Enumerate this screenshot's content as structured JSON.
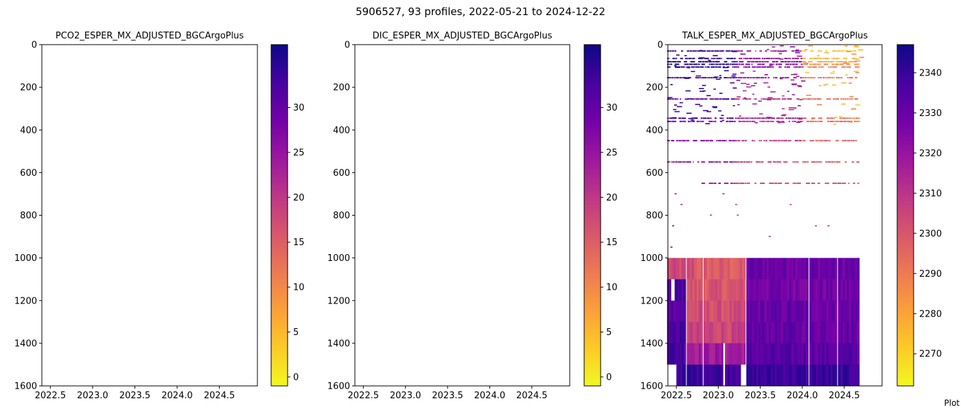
{
  "figure": {
    "suptitle": "5906527, 93 profiles, 2022-05-21 to 2024-12-22",
    "footer": "Plot"
  },
  "colors": {
    "cmap": [
      "#f0f921",
      "#fdca26",
      "#fb9f3a",
      "#ed7953",
      "#d8576b",
      "#bd3786",
      "#9c179e",
      "#7201a8",
      "#46039f",
      "#0d0887"
    ]
  },
  "chart_data": [
    {
      "type": "heatmap",
      "title": "PCO2_ESPER_MX_ADJUSTED_BGCArgoPlus",
      "xlim": [
        2022.4,
        2024.95
      ],
      "ylim": [
        1600,
        0
      ],
      "y_inverted": true,
      "xticks": [
        "2022.5",
        "2023.0",
        "2023.5",
        "2024.0",
        "2024.5"
      ],
      "yticks": [
        "0",
        "200",
        "400",
        "600",
        "800",
        "1000",
        "1200",
        "1400",
        "1600"
      ],
      "colorbar": {
        "range": [
          -1,
          37
        ],
        "ticks": [
          "0",
          "5",
          "10",
          "15",
          "20",
          "25",
          "30"
        ]
      },
      "cells": []
    },
    {
      "type": "heatmap",
      "title": "DIC_ESPER_MX_ADJUSTED_BGCArgoPlus",
      "xlim": [
        2022.4,
        2024.95
      ],
      "ylim": [
        1600,
        0
      ],
      "y_inverted": true,
      "xticks": [
        "2022.5",
        "2023.0",
        "2023.5",
        "2024.0",
        "2024.5"
      ],
      "yticks": [
        "0",
        "200",
        "400",
        "600",
        "800",
        "1000",
        "1200",
        "1400",
        "1600"
      ],
      "colorbar": {
        "range": [
          -1,
          37
        ],
        "ticks": [
          "0",
          "5",
          "10",
          "15",
          "20",
          "25",
          "30"
        ]
      },
      "cells": []
    },
    {
      "type": "heatmap",
      "title": "TALK_ESPER_MX_ADJUSTED_BGCArgoPlus",
      "xlim": [
        2022.4,
        2024.95
      ],
      "ylim": [
        1600,
        0
      ],
      "y_inverted": true,
      "xticks": [
        "2022.5",
        "2023.0",
        "2023.5",
        "2024.0",
        "2024.5"
      ],
      "yticks": [
        "0",
        "200",
        "400",
        "600",
        "800",
        "1000",
        "1200",
        "1400",
        "1600"
      ],
      "colorbar": {
        "range": [
          2262,
          2347
        ],
        "ticks": [
          "2270",
          "2280",
          "2290",
          "2300",
          "2310",
          "2320",
          "2330",
          "2340"
        ]
      },
      "profile_time_range": [
        2022.39,
        2024.68
      ],
      "deep_bands": [
        {
          "depth": [
            1000,
            1100
          ],
          "segments": [
            [
              2022.39,
              2022.72,
              2303
            ],
            [
              2022.72,
              2023.33,
              2298
            ],
            [
              2023.33,
              2024.68,
              2330
            ]
          ]
        },
        {
          "depth": [
            1100,
            1200
          ],
          "segments": [
            [
              2022.39,
              2022.62,
              2336
            ],
            [
              2022.62,
              2023.33,
              2300
            ],
            [
              2023.33,
              2024.68,
              2328
            ]
          ]
        },
        {
          "depth": [
            1200,
            1300
          ],
          "segments": [
            [
              2022.39,
              2022.62,
              2334
            ],
            [
              2022.62,
              2023.33,
              2302
            ],
            [
              2023.33,
              2024.68,
              2330
            ]
          ]
        },
        {
          "depth": [
            1300,
            1400
          ],
          "segments": [
            [
              2022.39,
              2022.62,
              2336
            ],
            [
              2022.62,
              2023.33,
              2305
            ],
            [
              2023.33,
              2024.68,
              2331
            ]
          ]
        },
        {
          "depth": [
            1400,
            1500
          ],
          "segments": [
            [
              2022.39,
              2022.62,
              2338
            ],
            [
              2022.62,
              2023.33,
              2318
            ],
            [
              2023.33,
              2024.68,
              2333
            ]
          ]
        },
        {
          "depth": [
            1500,
            1600
          ],
          "segments": [
            [
              2022.5,
              2023.27,
              2340
            ],
            [
              2023.33,
              2024.68,
              2339
            ]
          ]
        }
      ],
      "deep_gaps": [
        {
          "x": [
            2022.39,
            2022.5
          ],
          "depth": [
            1500,
            1600
          ]
        },
        {
          "x": [
            2022.44,
            2022.48
          ],
          "depth": [
            1100,
            1200
          ]
        },
        {
          "x": [
            2023.06,
            2023.08
          ],
          "depth": [
            1400,
            1600
          ]
        },
        {
          "x": [
            2023.27,
            2023.33
          ],
          "depth": [
            1500,
            1600
          ]
        }
      ],
      "shallow_rows": [
        {
          "depth": 30,
          "segments": [
            [
              2022.39,
              2023.2,
              2338
            ],
            [
              2023.2,
              2024.0,
              2318
            ],
            [
              2024.0,
              2024.68,
              2272
            ]
          ]
        },
        {
          "depth": 65,
          "segments": [
            [
              2022.39,
              2023.2,
              2342
            ],
            [
              2023.2,
              2024.0,
              2322
            ],
            [
              2024.0,
              2024.68,
              2278
            ]
          ]
        },
        {
          "depth": 80,
          "segments": [
            [
              2022.39,
              2023.2,
              2344
            ],
            [
              2023.2,
              2024.0,
              2325
            ],
            [
              2024.0,
              2024.68,
              2282
            ]
          ]
        },
        {
          "depth": 92,
          "segments": [
            [
              2022.39,
              2023.2,
              2344
            ],
            [
              2023.2,
              2024.0,
              2326
            ],
            [
              2024.0,
              2024.68,
              2286
            ]
          ]
        },
        {
          "depth": 105,
          "segments": [
            [
              2022.39,
              2023.2,
              2345
            ],
            [
              2023.2,
              2024.0,
              2325
            ],
            [
              2024.0,
              2024.68,
              2290
            ]
          ]
        },
        {
          "depth": 155,
          "segments": [
            [
              2022.39,
              2023.2,
              2335
            ],
            [
              2023.2,
              2024.0,
              2318
            ],
            [
              2024.0,
              2024.68,
              2292
            ]
          ]
        },
        {
          "depth": 255,
          "segments": [
            [
              2022.39,
              2023.2,
              2330
            ],
            [
              2023.2,
              2024.0,
              2312
            ],
            [
              2024.0,
              2024.68,
              2292
            ]
          ]
        },
        {
          "depth": 345,
          "segments": [
            [
              2022.39,
              2023.2,
              2335
            ],
            [
              2023.2,
              2024.0,
              2316
            ],
            [
              2024.0,
              2024.68,
              2294
            ]
          ]
        },
        {
          "depth": 360,
          "segments": [
            [
              2022.39,
              2023.2,
              2330
            ],
            [
              2023.2,
              2024.0,
              2312
            ],
            [
              2024.0,
              2024.68,
              2295
            ]
          ]
        },
        {
          "depth": 450,
          "segments": [
            [
              2022.39,
              2023.2,
              2325
            ],
            [
              2023.2,
              2024.0,
              2310
            ],
            [
              2024.0,
              2024.68,
              2296
            ]
          ]
        },
        {
          "depth": 550,
          "segments": [
            [
              2022.39,
              2023.2,
              2320
            ],
            [
              2023.2,
              2024.0,
              2305
            ],
            [
              2024.0,
              2024.68,
              2298
            ]
          ]
        },
        {
          "depth": 650,
          "segments": [
            [
              2022.8,
              2023.2,
              2318
            ],
            [
              2023.2,
              2024.68,
              2302
            ]
          ]
        }
      ],
      "sparse_points": [
        [
          2022.48,
          700,
          2320
        ],
        [
          2022.55,
          750,
          2316
        ],
        [
          2022.9,
          800,
          2310
        ],
        [
          2023.2,
          750,
          2305
        ],
        [
          2023.22,
          800,
          2308
        ],
        [
          2023.6,
          900,
          2312
        ],
        [
          2023.85,
          750,
          2304
        ],
        [
          2024.15,
          850,
          2306
        ],
        [
          2024.3,
          850,
          2310
        ],
        [
          2022.45,
          850,
          2322
        ],
        [
          2022.43,
          950,
          2326
        ],
        [
          2023.05,
          700,
          2314
        ]
      ]
    }
  ]
}
